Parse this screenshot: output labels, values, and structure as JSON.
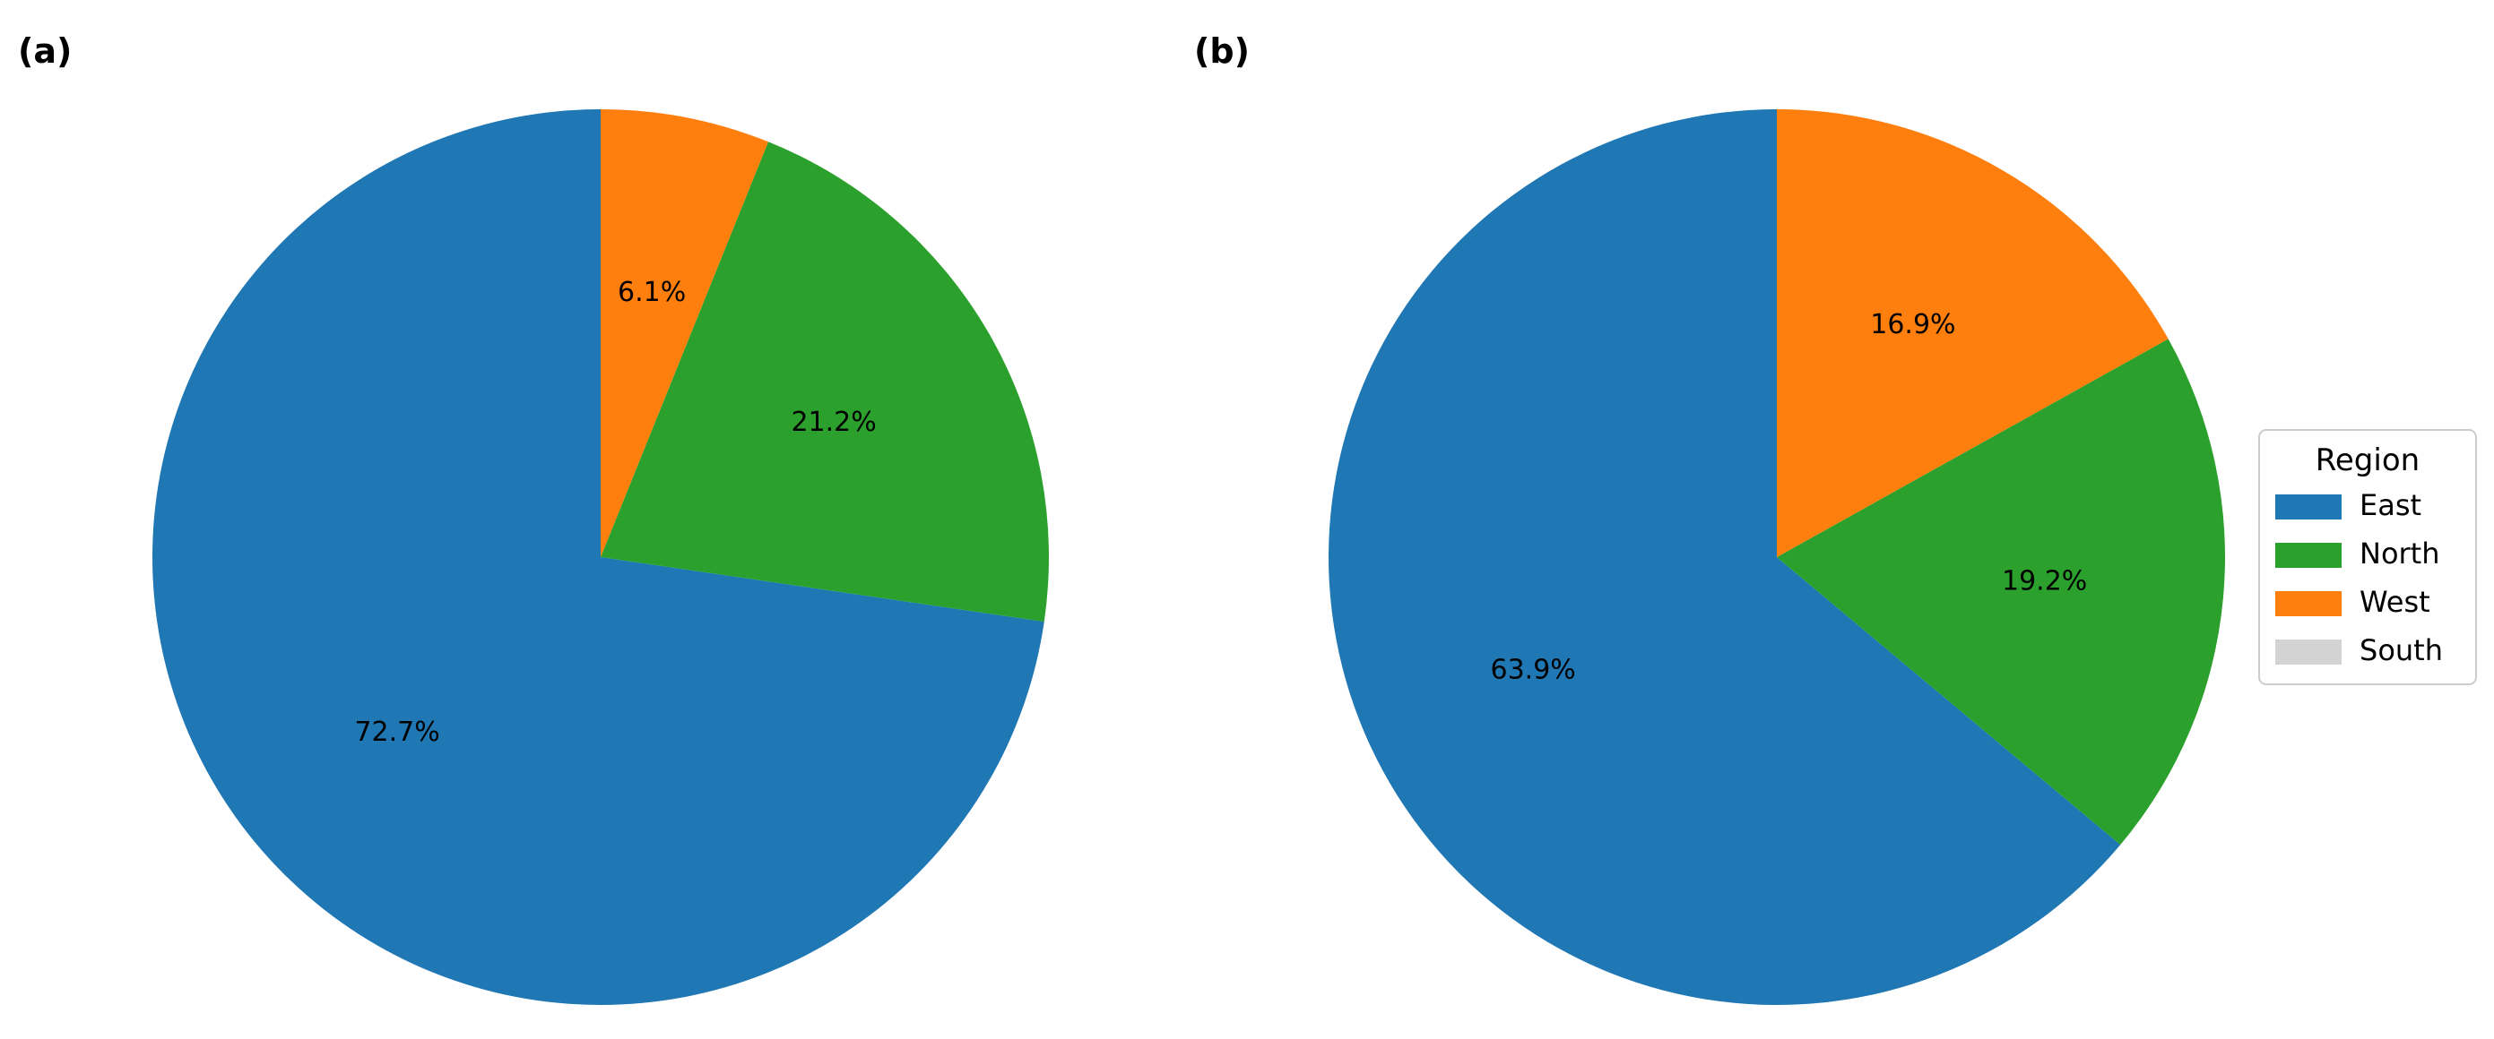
{
  "chart_data": [
    {
      "type": "pie",
      "panel_label": "(a)",
      "slices": [
        {
          "label": "East",
          "value": 72.7,
          "text": "72.7%"
        },
        {
          "label": "North",
          "value": 21.2,
          "text": "21.2%"
        },
        {
          "label": "West",
          "value": 6.1,
          "text": "6.1%"
        },
        {
          "label": "South",
          "value": 0,
          "text": ""
        }
      ],
      "start_angle_deg": 90,
      "direction": "clockwise_reversed_order"
    },
    {
      "type": "pie",
      "panel_label": "(b)",
      "slices": [
        {
          "label": "East",
          "value": 63.9,
          "text": "63.9%"
        },
        {
          "label": "North",
          "value": 19.2,
          "text": "19.2%"
        },
        {
          "label": "West",
          "value": 16.9,
          "text": "16.9%"
        },
        {
          "label": "South",
          "value": 0,
          "text": ""
        }
      ],
      "start_angle_deg": 90,
      "direction": "clockwise_reversed_order"
    }
  ],
  "legend": {
    "title": "Region",
    "placement": "right of panel (b)",
    "entries": [
      {
        "label": "East",
        "color": "#1f77b4"
      },
      {
        "label": "North",
        "color": "#2ca02c"
      },
      {
        "label": "West",
        "color": "#ff7f0e"
      },
      {
        "label": "South",
        "color": "#d3d3d3"
      }
    ]
  },
  "colors": {
    "East": "#1f77b4",
    "North": "#2ca02c",
    "West": "#ff7f0e",
    "South": "#d3d3d3"
  }
}
